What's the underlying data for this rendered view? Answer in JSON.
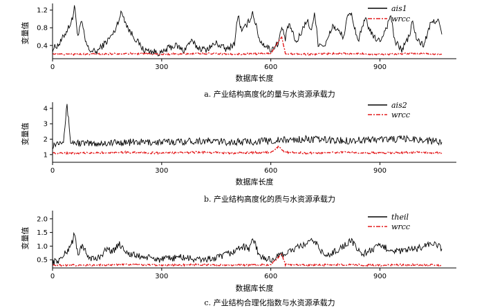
{
  "colors": {
    "main": "#000000",
    "wrcc": "#e41a1c"
  },
  "chart_data": [
    {
      "type": "line",
      "caption": "a.  产业结构高度化的量与水资源承载力",
      "xlabel": "数据库长度",
      "ylabel": "变量值",
      "xlim": [
        0,
        1110
      ],
      "ylim": [
        0.1,
        1.35
      ],
      "xticks": [
        0,
        300,
        600,
        900
      ],
      "yticks": [
        0.4,
        0.8,
        1.2
      ],
      "ytick_labels": [
        "0.4",
        "0.8",
        "1.2"
      ],
      "legend_position": "top-right",
      "series": [
        {
          "name": "ais1",
          "style": "solid",
          "x": [
            0,
            20,
            40,
            55,
            60,
            70,
            80,
            90,
            100,
            120,
            150,
            170,
            180,
            190,
            210,
            250,
            300,
            320,
            340,
            360,
            380,
            400,
            420,
            450,
            480,
            500,
            510,
            520,
            540,
            550,
            570,
            600,
            620,
            630,
            640,
            650,
            670,
            700,
            710,
            720,
            730,
            750,
            770,
            800,
            810,
            820,
            840,
            860,
            880,
            900,
            920,
            930,
            940,
            960,
            980,
            990,
            1000,
            1020,
            1040,
            1060,
            1070
          ],
          "y": [
            0.32,
            0.45,
            0.75,
            1.0,
            1.3,
            0.6,
            0.95,
            0.5,
            0.3,
            0.25,
            0.5,
            0.7,
            0.95,
            1.15,
            0.75,
            0.3,
            0.22,
            0.35,
            0.4,
            0.28,
            0.5,
            0.35,
            0.3,
            0.45,
            0.3,
            0.45,
            1.1,
            0.7,
            0.95,
            1.15,
            0.5,
            0.3,
            0.45,
            0.8,
            0.55,
            0.9,
            0.45,
            1.0,
            0.7,
            1.15,
            0.45,
            0.4,
            0.85,
            0.6,
            1.0,
            1.15,
            0.5,
            1.0,
            0.6,
            0.5,
            0.85,
            1.1,
            0.5,
            0.3,
            0.6,
            0.95,
            0.55,
            0.4,
            0.9,
            1.0,
            0.65
          ]
        },
        {
          "name": "wrcc",
          "style": "dash-dot",
          "x": [
            0,
            100,
            200,
            300,
            400,
            500,
            600,
            630,
            640,
            700,
            800,
            900,
            1000,
            1070
          ],
          "y": [
            0.2,
            0.2,
            0.22,
            0.2,
            0.22,
            0.2,
            0.22,
            0.6,
            0.22,
            0.2,
            0.22,
            0.2,
            0.22,
            0.2
          ]
        }
      ]
    },
    {
      "type": "line",
      "caption": "b.  产业结构高度化的质与水资源承载力",
      "xlabel": "数据库长度",
      "ylabel": "变量值",
      "xlim": [
        0,
        1110
      ],
      "ylim": [
        0.5,
        4.4
      ],
      "xticks": [
        0,
        300,
        600,
        900
      ],
      "yticks": [
        1,
        2,
        3,
        4
      ],
      "ytick_labels": [
        "1",
        "2",
        "3",
        "4"
      ],
      "legend_position": "top-right",
      "series": [
        {
          "name": "ais2",
          "style": "solid",
          "x": [
            0,
            30,
            40,
            50,
            100,
            200,
            300,
            400,
            500,
            600,
            700,
            800,
            900,
            1000,
            1070
          ],
          "y": [
            1.6,
            2.0,
            4.2,
            1.8,
            1.7,
            1.8,
            1.8,
            1.9,
            1.8,
            1.9,
            2.0,
            1.9,
            2.0,
            2.0,
            1.8
          ]
        },
        {
          "name": "wrcc",
          "style": "dash-dot",
          "x": [
            0,
            100,
            200,
            300,
            400,
            500,
            600,
            620,
            640,
            700,
            800,
            900,
            1000,
            1070
          ],
          "y": [
            1.1,
            1.1,
            1.15,
            1.1,
            1.15,
            1.1,
            1.15,
            1.5,
            1.15,
            1.1,
            1.15,
            1.1,
            1.15,
            1.1
          ]
        }
      ]
    },
    {
      "type": "line",
      "caption": "c.  产业结构合理化指数与水资源承载力",
      "xlabel": "数据库长度",
      "ylabel": "变量值",
      "xlim": [
        0,
        1110
      ],
      "ylim": [
        0.2,
        2.3
      ],
      "xticks": [
        0,
        300,
        600,
        900
      ],
      "yticks": [
        0.5,
        1.0,
        1.5,
        2.0
      ],
      "ytick_labels": [
        "0.5",
        "1.0",
        "1.5",
        "2.0"
      ],
      "legend_position": "top-right",
      "series": [
        {
          "name": "theil",
          "style": "solid",
          "x": [
            0,
            20,
            40,
            55,
            60,
            70,
            80,
            100,
            120,
            150,
            170,
            180,
            190,
            210,
            250,
            300,
            350,
            400,
            450,
            500,
            520,
            540,
            550,
            570,
            600,
            650,
            700,
            720,
            750,
            800,
            820,
            850,
            900,
            950,
            1000,
            1040,
            1060,
            1070
          ],
          "y": [
            0.4,
            0.5,
            0.8,
            1.2,
            1.45,
            0.7,
            1.0,
            0.6,
            0.5,
            0.9,
            0.8,
            1.1,
            1.0,
            0.7,
            0.6,
            0.5,
            0.6,
            0.5,
            0.55,
            0.8,
            1.0,
            0.9,
            1.3,
            0.6,
            0.5,
            0.8,
            1.1,
            1.2,
            0.6,
            1.0,
            1.2,
            0.7,
            1.0,
            0.8,
            0.9,
            1.1,
            1.0,
            0.9
          ]
        },
        {
          "name": "wrcc",
          "style": "dash-dot",
          "x": [
            0,
            100,
            200,
            300,
            400,
            500,
            600,
            630,
            640,
            700,
            800,
            900,
            1000,
            1070
          ],
          "y": [
            0.3,
            0.3,
            0.32,
            0.3,
            0.32,
            0.3,
            0.32,
            0.7,
            0.32,
            0.3,
            0.32,
            0.3,
            0.32,
            0.3
          ]
        }
      ]
    }
  ]
}
